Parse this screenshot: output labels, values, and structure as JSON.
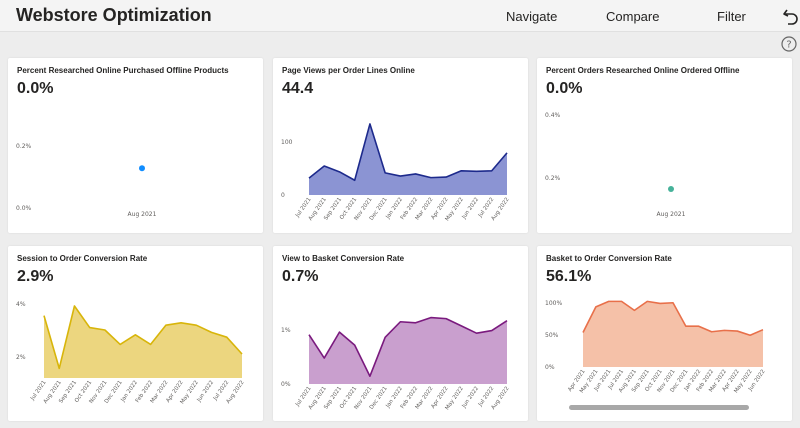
{
  "header": {
    "title": "Webstore Optimization",
    "nav": {
      "navigate": "Navigate",
      "compare": "Compare",
      "filter": "Filter"
    }
  },
  "cards": [
    {
      "title": "Percent Researched Online Purchased Offline Products",
      "value": "0.0%"
    },
    {
      "title": "Page Views per Order Lines Online",
      "value": "44.4"
    },
    {
      "title": "Percent Orders Researched Online Ordered Offline",
      "value": "0.0%"
    },
    {
      "title": "Session to Order Conversion Rate",
      "value": "2.9%"
    },
    {
      "title": "View to Basket Conversion Rate",
      "value": "0.7%"
    },
    {
      "title": "Basket to Order Conversion Rate",
      "value": "56.1%"
    }
  ],
  "chart_data": [
    {
      "type": "scatter",
      "color": "#118dff",
      "categories": [
        "Aug 2021"
      ],
      "values": [
        0.12
      ],
      "yticks": [
        "0.2%",
        "0.0%"
      ],
      "ylim": [
        0,
        0.25
      ]
    },
    {
      "type": "area",
      "color": "#1d2a8c",
      "fill": "#8b94d3",
      "categories": [
        "Jul 2021",
        "Aug 2021",
        "Sep 2021",
        "Oct 2021",
        "Nov 2021",
        "Dec 2021",
        "Jan 2022",
        "Feb 2022",
        "Mar 2022",
        "Apr 2022",
        "May 2022",
        "Jun 2022",
        "Jul 2022",
        "Aug 2022"
      ],
      "values": [
        32,
        55,
        44,
        28,
        135,
        42,
        36,
        40,
        33,
        34,
        46,
        45,
        46,
        80
      ],
      "yticks": [
        "100",
        "0"
      ],
      "ylim": [
        0,
        150
      ]
    },
    {
      "type": "scatter",
      "color": "#46b29a",
      "categories": [
        "Aug 2021"
      ],
      "values": [
        0.22
      ],
      "yticks": [
        "0.4%",
        "0.2%"
      ],
      "ylim": [
        0.2,
        0.4
      ]
    },
    {
      "type": "area",
      "color": "#d8b50a",
      "fill": "#ecd67f",
      "categories": [
        "Jul 2021",
        "Aug 2021",
        "Sep 2021",
        "Oct 2021",
        "Nov 2021",
        "Dec 2021",
        "Jan 2022",
        "Feb 2022",
        "Mar 2022",
        "Apr 2022",
        "May 2022",
        "Jun 2022",
        "Jul 2022",
        "Aug 2022"
      ],
      "values": [
        3.6,
        1.4,
        4.0,
        3.1,
        3.0,
        2.4,
        2.8,
        2.4,
        3.2,
        3.3,
        3.2,
        2.9,
        2.7,
        2.0
      ],
      "yticks": [
        "4%",
        "2%"
      ],
      "ylim": [
        1,
        4.5
      ]
    },
    {
      "type": "area",
      "color": "#7a1a7e",
      "fill": "#c99fce",
      "categories": [
        "Jul 2021",
        "Aug 2021",
        "Sep 2021",
        "Oct 2021",
        "Nov 2021",
        "Dec 2021",
        "Jan 2022",
        "Feb 2022",
        "Mar 2022",
        "Apr 2022",
        "May 2022",
        "Jun 2022",
        "Jul 2022",
        "Aug 2022"
      ],
      "values": [
        0.95,
        0.5,
        1.0,
        0.75,
        0.15,
        0.9,
        1.2,
        1.18,
        1.28,
        1.26,
        1.12,
        0.98,
        1.03,
        1.22
      ],
      "yticks": [
        "1%",
        "0%"
      ],
      "ylim": [
        0,
        1.6
      ]
    },
    {
      "type": "area",
      "color": "#e8704a",
      "fill": "#f5c1a8",
      "categories": [
        "Apr 2021",
        "May 2021",
        "Jun 2021",
        "Jul 2021",
        "Aug 2021",
        "Sep 2021",
        "Oct 2021",
        "Nov 2021",
        "Dec 2021",
        "Jan 2022",
        "Feb 2022",
        "Mar 2022",
        "Apr 2022",
        "May 2022",
        "Jun 2022"
      ],
      "values": [
        50,
        87,
        95,
        95,
        82,
        95,
        92,
        93,
        59,
        59,
        51,
        53,
        52,
        46,
        54
      ],
      "yticks": [
        "100%",
        "50%",
        "0%"
      ],
      "ylim": [
        0,
        110
      ]
    }
  ]
}
